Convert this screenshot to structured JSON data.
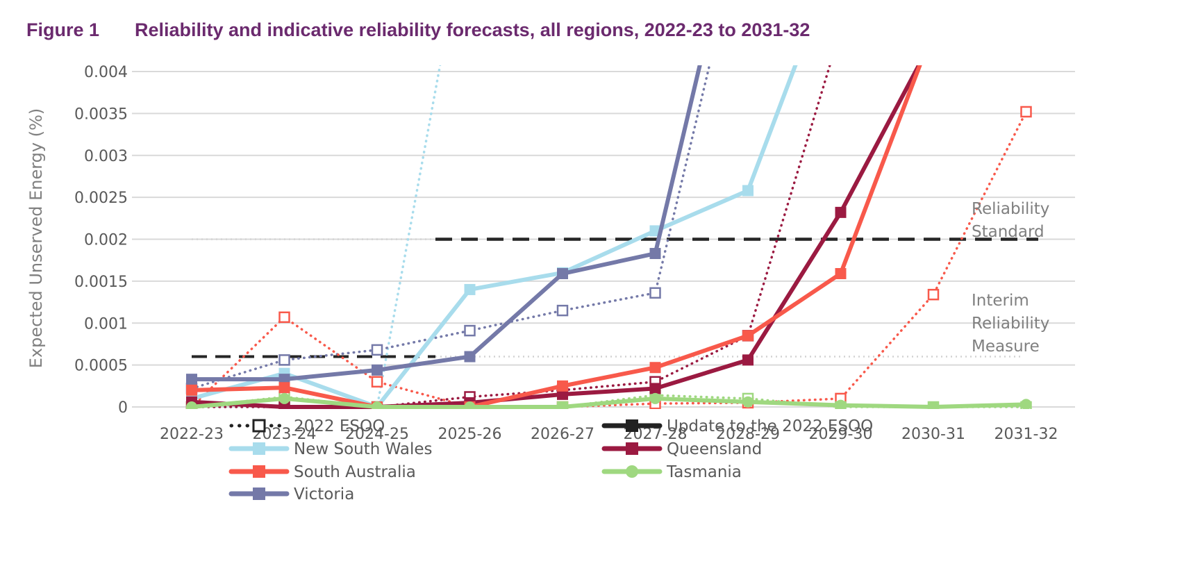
{
  "figure": {
    "number": "Figure 1",
    "title": "Reliability and indicative reliability forecasts, all regions, 2022-23 to 2031-32"
  },
  "chart_data": {
    "type": "line",
    "ylabel": "Expected Unserved Energy (%)",
    "ylim": [
      0,
      0.004
    ],
    "yticks": [
      {
        "value": 0,
        "label": "0"
      },
      {
        "value": 0.0005,
        "label": "0.0005"
      },
      {
        "value": 0.001,
        "label": "0.001"
      },
      {
        "value": 0.0015,
        "label": "0.0015"
      },
      {
        "value": 0.002,
        "label": "0.002"
      },
      {
        "value": 0.0025,
        "label": "0.0025"
      },
      {
        "value": 0.003,
        "label": "0.003"
      },
      {
        "value": 0.0035,
        "label": "0.0035"
      },
      {
        "value": 0.004,
        "label": "0.004"
      }
    ],
    "grid": true,
    "categories": [
      "2022-23",
      "2023-24",
      "2024-25",
      "2025-26",
      "2026-27",
      "2027-28",
      "2028-29",
      "2029-30",
      "2030-31",
      "2031-32"
    ],
    "series": [
      {
        "name": "New South Wales",
        "style": "update",
        "color": "#a8dcec",
        "values": [
          0.0001,
          0.0004,
          0.0,
          0.0014,
          0.0016,
          0.0021,
          0.00258,
          0.0055,
          null,
          null
        ]
      },
      {
        "name": "New South Wales",
        "style": "esoo",
        "color": "#a8dcec",
        "values": [
          0.0,
          0.0,
          0.0,
          0.006,
          null,
          null,
          null,
          null,
          null,
          null
        ]
      },
      {
        "name": "Victoria",
        "style": "update",
        "color": "#7479a8",
        "values": [
          0.00033,
          0.00033,
          0.00044,
          0.0006,
          0.00159,
          0.00183,
          0.0065,
          null,
          null,
          null
        ]
      },
      {
        "name": "Victoria",
        "style": "esoo",
        "color": "#7479a8",
        "values": [
          0.00022,
          0.00056,
          0.00068,
          0.00091,
          0.00115,
          0.00136,
          0.006,
          null,
          null,
          null
        ]
      },
      {
        "name": "Queensland",
        "style": "update",
        "color": "#9b1a41",
        "values": [
          6e-05,
          0.0,
          0.0,
          5e-05,
          0.00015,
          0.00022,
          0.00056,
          0.00232,
          0.0044,
          null
        ]
      },
      {
        "name": "Queensland",
        "style": "esoo",
        "color": "#9b1a41",
        "values": [
          0.0,
          0.0,
          0.0,
          0.00012,
          0.0002,
          0.0003,
          0.00085,
          0.0045,
          null,
          null
        ]
      },
      {
        "name": "South Australia",
        "style": "update",
        "color": "#f8594b",
        "values": [
          0.0002,
          0.00023,
          0.0,
          0.0,
          0.00025,
          0.00047,
          0.00085,
          0.00159,
          0.0045,
          null
        ]
      },
      {
        "name": "South Australia",
        "style": "esoo",
        "color": "#f8594b",
        "values": [
          0.0,
          0.00107,
          0.0003,
          0.0,
          0.0,
          4e-05,
          5e-05,
          0.0001,
          0.00134,
          0.00352
        ]
      },
      {
        "name": "Tasmania",
        "style": "update",
        "color": "#9fd880",
        "values": [
          0.0,
          0.0001,
          0.0,
          0.0,
          0.0,
          0.0001,
          6e-05,
          2e-05,
          0.0,
          3e-05
        ]
      },
      {
        "name": "Tasmania",
        "style": "esoo",
        "color": "#9fd880",
        "values": [
          0.0,
          0.00012,
          0.0,
          0.0,
          0.0,
          0.00014,
          0.0001,
          0.0,
          0.0,
          0.0
        ]
      }
    ],
    "reference_lines": [
      {
        "label": "Reliability Standard",
        "value": 0.002
      },
      {
        "label": "Interim Reliability Measure",
        "value": 0.0006
      }
    ],
    "annotations": [
      {
        "lines": [
          "Reliability",
          "Standard"
        ]
      },
      {
        "lines": [
          "Interim",
          "Reliability",
          "Measure"
        ]
      }
    ],
    "legend": {
      "placement": "bottom",
      "items": [
        {
          "label": "2022 ESOO",
          "kind": "esoo",
          "color": "#222222"
        },
        {
          "label": "Update to the 2022 ESOO",
          "kind": "update",
          "color": "#222222"
        },
        {
          "label": "New South Wales",
          "kind": "region",
          "color": "#a8dcec",
          "marker": "square"
        },
        {
          "label": "Queensland",
          "kind": "region",
          "color": "#9b1a41",
          "marker": "square"
        },
        {
          "label": "South Australia",
          "kind": "region",
          "color": "#f8594b",
          "marker": "square"
        },
        {
          "label": "Tasmania",
          "kind": "region",
          "color": "#9fd880",
          "marker": "circle"
        },
        {
          "label": "Victoria",
          "kind": "region",
          "color": "#7479a8",
          "marker": "square"
        }
      ]
    }
  }
}
